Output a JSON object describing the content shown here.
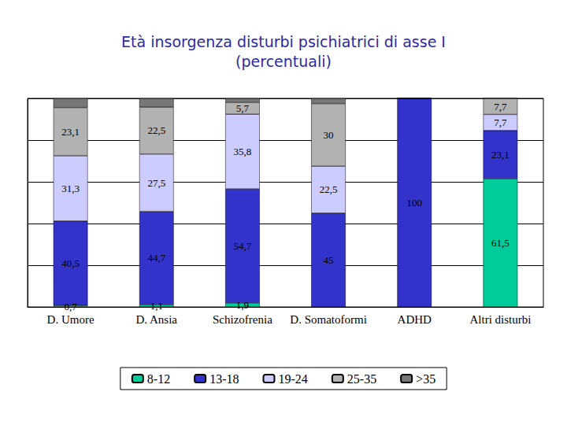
{
  "chart_data": {
    "type": "bar",
    "stacked": true,
    "title": "Età insorgenza disturbi psichiatrici di asse I",
    "subtitle": "(percentuali)",
    "categories": [
      "D. Umore",
      "D. Ansia",
      "Schizofrenia",
      "D. Somatoformi",
      "ADHD",
      "Altri disturbi"
    ],
    "series": [
      {
        "name": "8-12",
        "color": "#00cc99",
        "values": [
          0.7,
          1.1,
          1.9,
          0,
          0,
          61.5
        ],
        "value_labels": [
          "0,7",
          "1,1",
          "1,9",
          null,
          null,
          "61,5"
        ]
      },
      {
        "name": "13-18",
        "color": "#3333cc",
        "values": [
          40.5,
          44.7,
          54.7,
          45,
          100,
          23.1
        ],
        "value_labels": [
          "40,5",
          "44,7",
          "54,7",
          "45",
          "100",
          "23,1"
        ]
      },
      {
        "name": "19-24",
        "color": "#ccccff",
        "values": [
          31.3,
          27.5,
          35.8,
          22.5,
          0,
          7.7
        ],
        "value_labels": [
          "31,3",
          "27,5",
          "35,8",
          "22,5",
          null,
          "7,7"
        ]
      },
      {
        "name": "25-35",
        "color": "#b2b2b2",
        "values": [
          23.1,
          22.5,
          5.7,
          30,
          0,
          7.7
        ],
        "value_labels": [
          "23,1",
          "22,5",
          "5,7",
          "30",
          null,
          "7,7"
        ]
      },
      {
        "name": ">35",
        "color": "#777777",
        "values": [
          4.4,
          4.2,
          1.9,
          2.5,
          0,
          0
        ],
        "value_labels": [
          null,
          null,
          null,
          null,
          null,
          null
        ]
      }
    ],
    "ylim": [
      0,
      100
    ],
    "yticks": [
      0,
      20,
      40,
      60,
      80,
      100
    ],
    "grid": true,
    "legend": "bottom",
    "data_labels": true,
    "tick_labels": "x"
  }
}
